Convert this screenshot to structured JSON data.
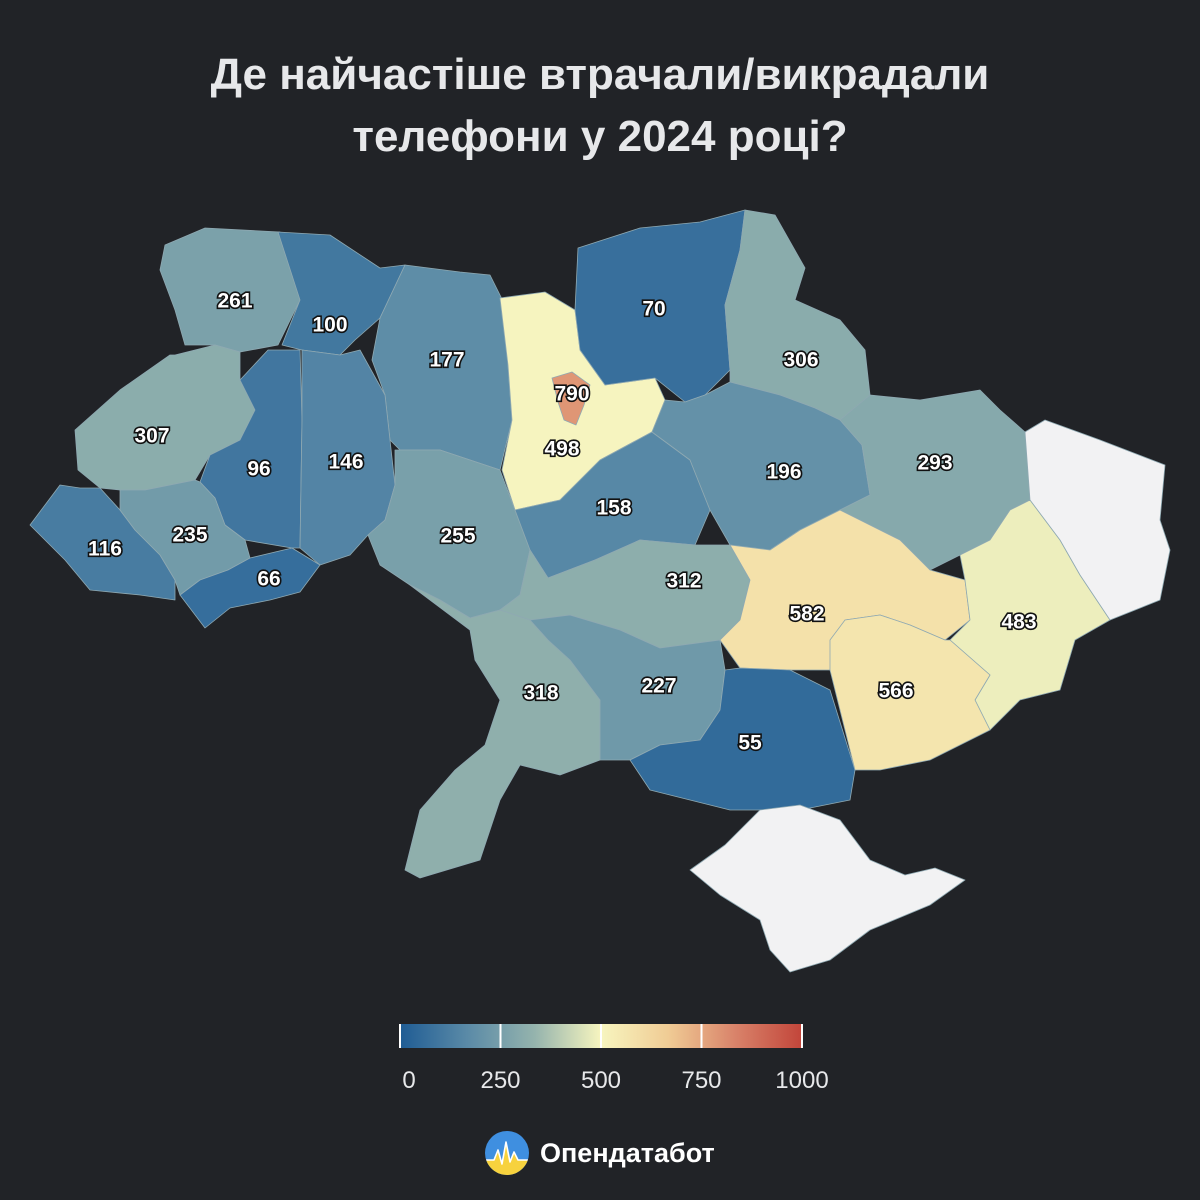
{
  "header": {
    "title_line1": "Де найчастіше втрачали/викрадали",
    "title_line2": "телефони у 2024 році?"
  },
  "legend": {
    "ticks": [
      "0",
      "250",
      "500",
      "750",
      "1000"
    ],
    "min": 0,
    "max": 1000,
    "colors": [
      "#1f5c94",
      "#5a8aa7",
      "#94b3ad",
      "#f7f5bf",
      "#f0cc95",
      "#d9836a",
      "#c2453a"
    ]
  },
  "brand": {
    "name": "Опендатабот",
    "logo_icon": "opendatabot-logo-icon"
  },
  "regions": [
    {
      "id": "volyn",
      "value": 261,
      "label": "261"
    },
    {
      "id": "rivne",
      "value": 100,
      "label": "100"
    },
    {
      "id": "zhytomyr",
      "value": 177,
      "label": "177"
    },
    {
      "id": "kyiv-oblast",
      "value": 498,
      "label": "498"
    },
    {
      "id": "kyiv-city",
      "value": 790,
      "label": "790"
    },
    {
      "id": "chernihiv",
      "value": 70,
      "label": "70"
    },
    {
      "id": "sumy",
      "value": 306,
      "label": "306"
    },
    {
      "id": "lviv",
      "value": 307,
      "label": "307"
    },
    {
      "id": "ternopil",
      "value": 96,
      "label": "96"
    },
    {
      "id": "khmelnytskyi",
      "value": 146,
      "label": "146"
    },
    {
      "id": "vinnytsia",
      "value": 255,
      "label": "255"
    },
    {
      "id": "cherkasy",
      "value": 158,
      "label": "158"
    },
    {
      "id": "poltava",
      "value": 196,
      "label": "196"
    },
    {
      "id": "kharkiv",
      "value": 293,
      "label": "293"
    },
    {
      "id": "zakarpattia",
      "value": 116,
      "label": "116"
    },
    {
      "id": "ivano-frankivsk",
      "value": 235,
      "label": "235"
    },
    {
      "id": "chernivtsi",
      "value": 66,
      "label": "66"
    },
    {
      "id": "kirovohrad",
      "value": 312,
      "label": "312"
    },
    {
      "id": "dnipropetrovsk",
      "value": 582,
      "label": "582"
    },
    {
      "id": "donetsk",
      "value": 483,
      "label": "483"
    },
    {
      "id": "luhansk",
      "value": null,
      "label": ""
    },
    {
      "id": "odesa",
      "value": 318,
      "label": "318"
    },
    {
      "id": "mykolaiv",
      "value": 227,
      "label": "227"
    },
    {
      "id": "kherson",
      "value": 55,
      "label": "55"
    },
    {
      "id": "zaporizhzhia",
      "value": 566,
      "label": "566"
    },
    {
      "id": "crimea",
      "value": null,
      "label": ""
    }
  ]
}
